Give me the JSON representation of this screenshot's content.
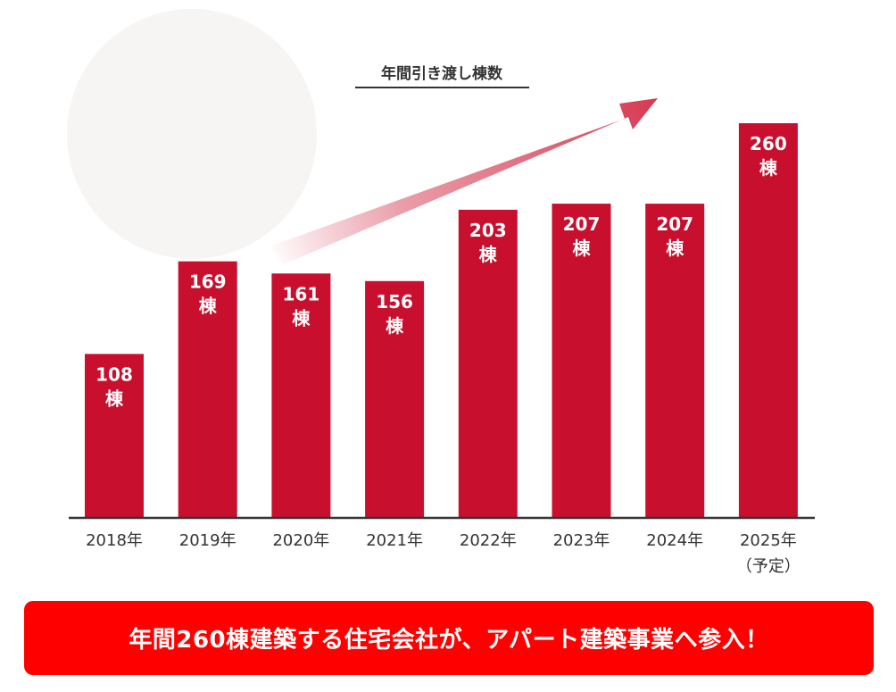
{
  "chart_data": {
    "type": "bar",
    "title": "年間引き渡し棟数",
    "categories": [
      "2018年",
      "2019年",
      "2020年",
      "2021年",
      "2022年",
      "2023年",
      "2024年",
      "2025年"
    ],
    "category_notes": [
      "",
      "",
      "",
      "",
      "",
      "",
      "",
      "（予定）"
    ],
    "values": [
      108,
      169,
      161,
      156,
      203,
      207,
      207,
      260
    ],
    "value_unit": "棟",
    "bar_color": "#c8102e",
    "trend_arrow": true,
    "grid": false
  },
  "banner": {
    "text": "年間260棟建築する住宅会社が、アパート建築事業へ参入！",
    "color": "#ff0000"
  }
}
